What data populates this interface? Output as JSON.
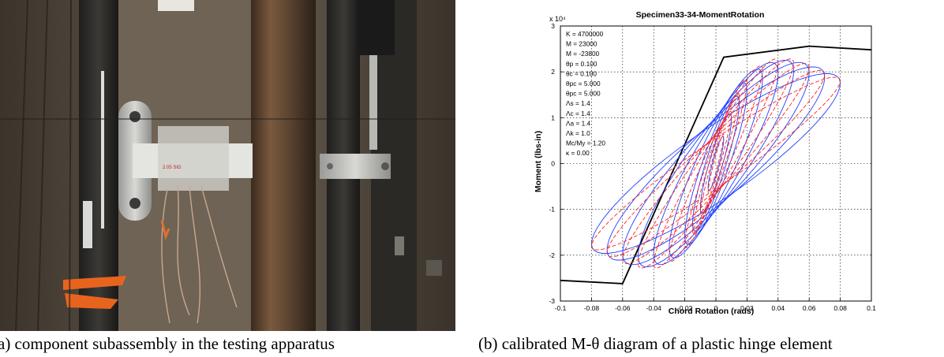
{
  "figure": {
    "caption_a": "(a) component subassembly in the testing apparatus",
    "caption_b": "(b) calibrated M-θ diagram of a plastic hinge element",
    "photo_label": "2.05 SIG"
  },
  "chart_data": {
    "type": "line",
    "title": "Specimen33-34-MomentRotation",
    "xlabel": "Chord Rotation (rads)",
    "ylabel": "Moment (lbs-in)",
    "y_multiplier_label": "x 10⁴",
    "xlim": [
      -0.1,
      0.1
    ],
    "ylim": [
      -3,
      3
    ],
    "y_unit_scale": 10000,
    "xticks": [
      -0.1,
      -0.08,
      -0.06,
      -0.04,
      -0.02,
      0,
      0.02,
      0.04,
      0.06,
      0.08,
      0.1
    ],
    "xtick_labels": [
      "-0.1",
      "-0.08",
      "-0.06",
      "-0.04",
      "-0.02",
      "0",
      "0.02",
      "0.04",
      "0.06",
      "0.08",
      "0.1"
    ],
    "yticks": [
      -3,
      -2,
      -1,
      0,
      1,
      2,
      3
    ],
    "ytick_labels": [
      "-3",
      "-2",
      "-1",
      "0",
      "1",
      "2",
      "3"
    ],
    "grid": true,
    "annotations": [
      "K = 4700000",
      "M = 23000",
      "M = -23800",
      "θp = 0.100",
      "θc = 0.100",
      "θpc = 5.000",
      "θpc = 5.000",
      "Λs = 1.4",
      "Λc = 1.4",
      "Λa = 1.4",
      "Λk = 1.0",
      "Mc/My = 1.20",
      "κ = 0.00"
    ],
    "series": [
      {
        "color": "#000000",
        "style": "solid",
        "x": [
          -0.1,
          -0.06,
          0.005,
          0.06,
          0.1
        ],
        "y": [
          -25500,
          -26200,
          23200,
          25600,
          24800
        ]
      },
      {
        "color": "#1f3fff",
        "style": "solid",
        "cycles": [
          {
            "amp_x": 0.005,
            "amp_y": 6000
          },
          {
            "amp_x": 0.01,
            "amp_y": 11000
          },
          {
            "amp_x": 0.015,
            "amp_y": 15000
          },
          {
            "amp_x": 0.02,
            "amp_y": 18000
          },
          {
            "amp_x": 0.03,
            "amp_y": 21000
          },
          {
            "amp_x": 0.04,
            "amp_y": 22500
          },
          {
            "amp_x": 0.05,
            "amp_y": 23000
          },
          {
            "amp_x": 0.06,
            "amp_y": 22500
          },
          {
            "amp_x": 0.07,
            "amp_y": 21500
          },
          {
            "amp_x": 0.08,
            "amp_y": 20000
          }
        ]
      },
      {
        "color": "#ff2020",
        "style": "dashed",
        "cycles": [
          {
            "amp_x": 0.005,
            "amp_y": 6500
          },
          {
            "amp_x": 0.01,
            "amp_y": 11500
          },
          {
            "amp_x": 0.015,
            "amp_y": 15500
          },
          {
            "amp_x": 0.02,
            "amp_y": 18500
          },
          {
            "amp_x": 0.03,
            "amp_y": 21500
          },
          {
            "amp_x": 0.04,
            "amp_y": 23000
          },
          {
            "amp_x": 0.05,
            "amp_y": 23000
          },
          {
            "amp_x": 0.06,
            "amp_y": 22000
          },
          {
            "amp_x": 0.07,
            "amp_y": 20500
          },
          {
            "amp_x": 0.08,
            "amp_y": 19000
          }
        ]
      }
    ]
  }
}
